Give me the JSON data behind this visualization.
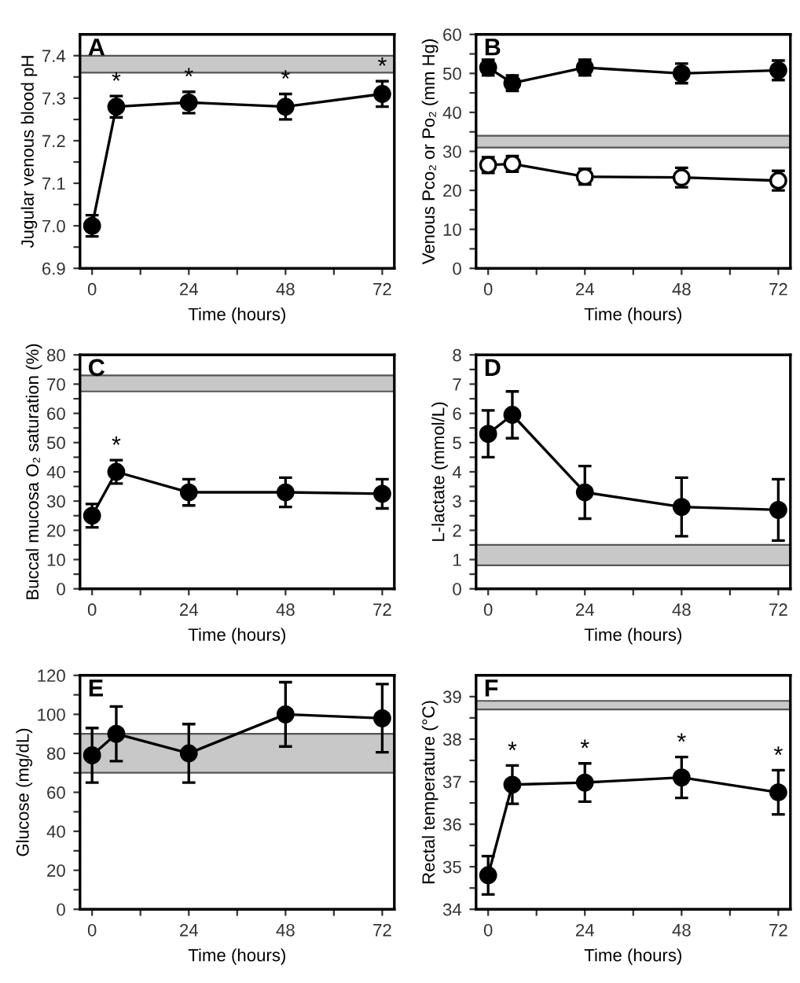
{
  "chart_data": [
    {
      "type": "line",
      "title": "A",
      "xlabel": "Time (hours)",
      "ylabel": "Jugular venous blood pH",
      "x": [
        0,
        6,
        24,
        48,
        72
      ],
      "series": [
        {
          "color": "#000000",
          "values": [
            7.0,
            7.28,
            7.29,
            7.28,
            7.31
          ],
          "errors": [
            0.025,
            0.025,
            0.025,
            0.03,
            0.03
          ]
        }
      ],
      "xlim": [
        -3,
        75
      ],
      "xticks": [
        0,
        {
          "value": 12,
          "label": null
        },
        24,
        {
          "value": 36,
          "label": null
        },
        48,
        {
          "value": 60,
          "label": null
        },
        72
      ],
      "ylim": [
        6.9,
        7.45
      ],
      "yticks": [
        6.9,
        {
          "value": 6.95,
          "label": null
        },
        {
          "value": 7.0,
          "label": "7.0"
        },
        {
          "value": 7.05,
          "label": null
        },
        7.1,
        {
          "value": 7.15,
          "label": null
        },
        7.2,
        {
          "value": 7.25,
          "label": null
        },
        7.3,
        {
          "value": 7.35,
          "label": null
        },
        7.4
      ],
      "bands": [
        {
          "axis": "y",
          "from": 7.36,
          "to": 7.4,
          "color": "#c8c8c8"
        }
      ],
      "annotations": [
        {
          "text": "*",
          "x": 6,
          "y": 7.28
        },
        {
          "text": "*",
          "x": 24,
          "y": 7.29
        },
        {
          "text": "*",
          "x": 48,
          "y": 7.28
        },
        {
          "text": "*",
          "x": 72,
          "y": 7.31
        }
      ],
      "marker": "circle",
      "line_style": "solid",
      "grid": false,
      "legend": false
    },
    {
      "type": "line",
      "title": "B",
      "xlabel": "Time (hours)",
      "ylabel": "Venous Pco₂ or Po₂ (mm Hg)",
      "x": [
        0,
        6,
        24,
        48,
        72
      ],
      "series": [
        {
          "color": "#000000",
          "values": [
            51.5,
            47.5,
            51.5,
            50,
            50.8
          ],
          "errors": [
            2,
            2,
            2,
            2.5,
            2.5
          ]
        },
        {
          "color": "#ffffff",
          "values": [
            26.5,
            26.8,
            23.5,
            23.3,
            22.5
          ],
          "errors": [
            2,
            2,
            2,
            2.5,
            2.5
          ]
        }
      ],
      "xlim": [
        -3,
        75
      ],
      "xticks": [
        0,
        {
          "value": 12,
          "label": null
        },
        24,
        {
          "value": 36,
          "label": null
        },
        48,
        {
          "value": 60,
          "label": null
        },
        72
      ],
      "ylim": [
        0,
        60
      ],
      "yticks": [
        0,
        {
          "value": 5,
          "label": null
        },
        10,
        {
          "value": 15,
          "label": null
        },
        20,
        {
          "value": 25,
          "label": null
        },
        30,
        {
          "value": 35,
          "label": null
        },
        40,
        {
          "value": 45,
          "label": null
        },
        50,
        {
          "value": 55,
          "label": null
        },
        60
      ],
      "bands": [
        {
          "axis": "y",
          "from": 31,
          "to": 34,
          "color": "#c8c8c8"
        }
      ],
      "marker": "circle",
      "line_style": "solid",
      "grid": false,
      "legend": false
    },
    {
      "type": "line",
      "title": "C",
      "xlabel": "Time (hours)",
      "ylabel": "Buccal mucosa O₂ saturation (%)",
      "x": [
        0,
        6,
        24,
        48,
        72
      ],
      "series": [
        {
          "color": "#000000",
          "values": [
            25,
            40,
            33,
            33,
            32.5
          ],
          "errors": [
            4,
            4,
            4.5,
            5,
            5
          ]
        }
      ],
      "xlim": [
        -3,
        75
      ],
      "xticks": [
        0,
        {
          "value": 12,
          "label": null
        },
        24,
        {
          "value": 36,
          "label": null
        },
        48,
        {
          "value": 60,
          "label": null
        },
        72
      ],
      "ylim": [
        0,
        80
      ],
      "yticks": [
        0,
        {
          "value": 5,
          "label": null
        },
        10,
        {
          "value": 15,
          "label": null
        },
        20,
        {
          "value": 25,
          "label": null
        },
        30,
        {
          "value": 35,
          "label": null
        },
        40,
        {
          "value": 45,
          "label": null
        },
        50,
        {
          "value": 55,
          "label": null
        },
        60,
        {
          "value": 65,
          "label": null
        },
        70,
        {
          "value": 75,
          "label": null
        },
        80
      ],
      "bands": [
        {
          "axis": "y",
          "from": 67.5,
          "to": 73,
          "color": "#c8c8c8"
        }
      ],
      "annotations": [
        {
          "text": "*",
          "x": 6,
          "y": 40
        }
      ],
      "marker": "circle",
      "line_style": "solid",
      "grid": false,
      "legend": false
    },
    {
      "type": "line",
      "title": "D",
      "xlabel": "Time (hours)",
      "ylabel": "L-lactate (mmol/L)",
      "x": [
        0,
        6,
        24,
        48,
        72
      ],
      "series": [
        {
          "color": "#000000",
          "values": [
            5.3,
            5.95,
            3.3,
            2.8,
            2.7
          ],
          "errors": [
            0.8,
            0.8,
            0.9,
            1.0,
            1.05
          ]
        }
      ],
      "xlim": [
        -3,
        75
      ],
      "xticks": [
        0,
        {
          "value": 12,
          "label": null
        },
        24,
        {
          "value": 36,
          "label": null
        },
        48,
        {
          "value": 60,
          "label": null
        },
        72
      ],
      "ylim": [
        0,
        8
      ],
      "yticks": [
        0,
        {
          "value": 0.5,
          "label": null
        },
        1,
        {
          "value": 1.5,
          "label": null
        },
        2,
        {
          "value": 2.5,
          "label": null
        },
        3,
        {
          "value": 3.5,
          "label": null
        },
        4,
        {
          "value": 4.5,
          "label": null
        },
        5,
        {
          "value": 5.5,
          "label": null
        },
        6,
        {
          "value": 6.5,
          "label": null
        },
        7,
        {
          "value": 7.5,
          "label": null
        },
        8
      ],
      "bands": [
        {
          "axis": "y",
          "from": 0.8,
          "to": 1.5,
          "color": "#c8c8c8"
        }
      ],
      "marker": "circle",
      "line_style": "solid",
      "grid": false,
      "legend": false
    },
    {
      "type": "line",
      "title": "E",
      "xlabel": "Time (hours)",
      "ylabel": "Glucose (mg/dL)",
      "x": [
        0,
        6,
        24,
        48,
        72
      ],
      "series": [
        {
          "color": "#000000",
          "values": [
            79,
            90,
            80,
            100,
            98
          ],
          "errors": [
            14,
            14,
            15,
            16.5,
            17.5
          ]
        }
      ],
      "xlim": [
        -3,
        75
      ],
      "xticks": [
        0,
        {
          "value": 12,
          "label": null
        },
        24,
        {
          "value": 36,
          "label": null
        },
        48,
        {
          "value": 60,
          "label": null
        },
        72
      ],
      "ylim": [
        0,
        120
      ],
      "yticks": [
        0,
        {
          "value": 10,
          "label": null
        },
        20,
        {
          "value": 30,
          "label": null
        },
        40,
        {
          "value": 50,
          "label": null
        },
        60,
        {
          "value": 70,
          "label": null
        },
        80,
        {
          "value": 90,
          "label": null
        },
        100,
        {
          "value": 110,
          "label": null
        },
        120
      ],
      "bands": [
        {
          "axis": "y",
          "from": 70,
          "to": 90,
          "color": "#c8c8c8"
        }
      ],
      "marker": "circle",
      "line_style": "solid",
      "grid": false,
      "legend": false
    },
    {
      "type": "line",
      "title": "F",
      "xlabel": "Time (hours)",
      "ylabel": "Rectal temperature (°C)",
      "x": [
        0,
        6,
        24,
        48,
        72
      ],
      "series": [
        {
          "color": "#000000",
          "values": [
            34.8,
            36.93,
            36.98,
            37.1,
            36.75
          ],
          "errors": [
            0.45,
            0.45,
            0.45,
            0.48,
            0.52
          ]
        }
      ],
      "xlim": [
        -3,
        75
      ],
      "xticks": [
        0,
        {
          "value": 12,
          "label": null
        },
        24,
        {
          "value": 36,
          "label": null
        },
        48,
        {
          "value": 60,
          "label": null
        },
        72
      ],
      "ylim": [
        34,
        39.5
      ],
      "yticks": [
        34,
        {
          "value": 34.5,
          "label": null
        },
        35,
        {
          "value": 35.5,
          "label": null
        },
        36,
        {
          "value": 36.5,
          "label": null
        },
        37,
        {
          "value": 37.5,
          "label": null
        },
        38,
        {
          "value": 38.5,
          "label": null
        },
        39
      ],
      "bands": [
        {
          "axis": "y",
          "from": 38.7,
          "to": 38.9,
          "color": "#c8c8c8"
        }
      ],
      "annotations": [
        {
          "text": "*",
          "x": 6,
          "y": 36.93
        },
        {
          "text": "*",
          "x": 24,
          "y": 36.98
        },
        {
          "text": "*",
          "x": 48,
          "y": 37.1
        },
        {
          "text": "*",
          "x": 72,
          "y": 36.75
        }
      ],
      "marker": "circle",
      "line_style": "solid",
      "grid": false,
      "legend": false
    }
  ]
}
